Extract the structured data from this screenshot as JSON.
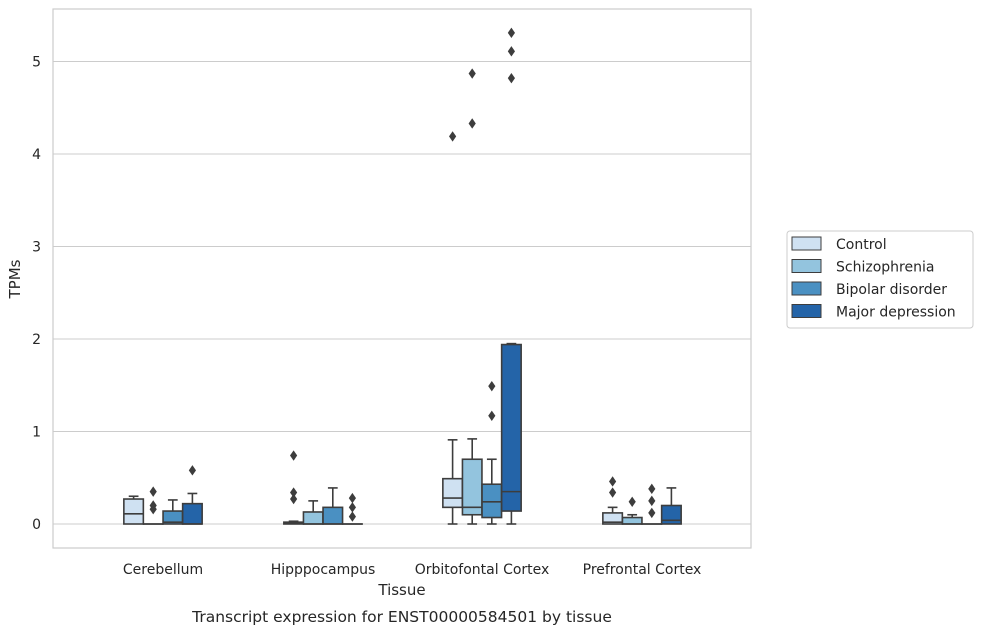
{
  "chart_data": {
    "type": "box",
    "caption": "Transcript expression for ENST00000584501 by tissue",
    "xlabel": "Tissue",
    "ylabel": "TPMs",
    "ylim": [
      -0.25,
      5.58
    ],
    "yticks": [
      0,
      1,
      2,
      3,
      4,
      5
    ],
    "grid": "horizontal",
    "legend_position": "right",
    "categories": [
      "Cerebellum",
      "Hipppocampus",
      "Orbitofontal Cortex",
      "Prefrontal Cortex"
    ],
    "series": [
      {
        "name": "Control",
        "color": "#cfe1f2",
        "boxes": [
          {
            "whislo": 0.0,
            "q1": 0.0,
            "med": 0.11,
            "q3": 0.27,
            "whishi": 0.3,
            "fliers": []
          },
          {
            "whislo": 0.0,
            "q1": 0.0,
            "med": 0.01,
            "q3": 0.02,
            "whishi": 0.03,
            "fliers": [
              0.74,
              0.34,
              0.27
            ]
          },
          {
            "whislo": 0.0,
            "q1": 0.18,
            "med": 0.28,
            "q3": 0.49,
            "whishi": 0.91,
            "fliers": [
              4.19
            ]
          },
          {
            "whislo": 0.0,
            "q1": 0.0,
            "med": 0.02,
            "q3": 0.12,
            "whishi": 0.18,
            "fliers": [
              0.46,
              0.34
            ]
          }
        ]
      },
      {
        "name": "Schizophrenia",
        "color": "#93c4de",
        "boxes": [
          {
            "whislo": 0.0,
            "q1": 0.0,
            "med": 0.0,
            "q3": 0.0,
            "whishi": 0.0,
            "fliers": [
              0.35,
              0.2,
              0.16
            ]
          },
          {
            "whislo": 0.0,
            "q1": 0.0,
            "med": 0.0,
            "q3": 0.13,
            "whishi": 0.25,
            "fliers": []
          },
          {
            "whislo": 0.0,
            "q1": 0.1,
            "med": 0.18,
            "q3": 0.7,
            "whishi": 0.92,
            "fliers": [
              4.87,
              4.33
            ]
          },
          {
            "whislo": 0.0,
            "q1": 0.0,
            "med": 0.0,
            "q3": 0.07,
            "whishi": 0.1,
            "fliers": [
              0.24
            ]
          }
        ]
      },
      {
        "name": "Bipolar disorder",
        "color": "#4a90c2",
        "boxes": [
          {
            "whislo": 0.0,
            "q1": 0.0,
            "med": 0.02,
            "q3": 0.14,
            "whishi": 0.26,
            "fliers": []
          },
          {
            "whislo": 0.0,
            "q1": 0.0,
            "med": 0.0,
            "q3": 0.18,
            "whishi": 0.39,
            "fliers": []
          },
          {
            "whislo": 0.0,
            "q1": 0.07,
            "med": 0.24,
            "q3": 0.43,
            "whishi": 0.7,
            "fliers": [
              1.49,
              1.17
            ]
          },
          {
            "whislo": 0.0,
            "q1": 0.0,
            "med": 0.0,
            "q3": 0.0,
            "whishi": 0.0,
            "fliers": [
              0.38,
              0.25,
              0.12
            ]
          }
        ]
      },
      {
        "name": "Major depression",
        "color": "#2464a8",
        "boxes": [
          {
            "whislo": 0.0,
            "q1": 0.0,
            "med": 0.0,
            "q3": 0.22,
            "whishi": 0.33,
            "fliers": [
              0.58
            ]
          },
          {
            "whislo": 0.0,
            "q1": 0.0,
            "med": 0.0,
            "q3": 0.0,
            "whishi": 0.0,
            "fliers": [
              0.28,
              0.18,
              0.08
            ]
          },
          {
            "whislo": 0.0,
            "q1": 0.14,
            "med": 0.35,
            "q3": 1.94,
            "whishi": 1.95,
            "fliers": [
              5.31,
              5.11,
              4.82
            ]
          },
          {
            "whislo": 0.0,
            "q1": 0.0,
            "med": 0.04,
            "q3": 0.2,
            "whishi": 0.39,
            "fliers": []
          }
        ]
      }
    ]
  },
  "colors": {
    "grid": "#cccccc",
    "frame": "#cccccc",
    "box_edge": "#3d3d3d",
    "flier": "#3d3d3d"
  }
}
